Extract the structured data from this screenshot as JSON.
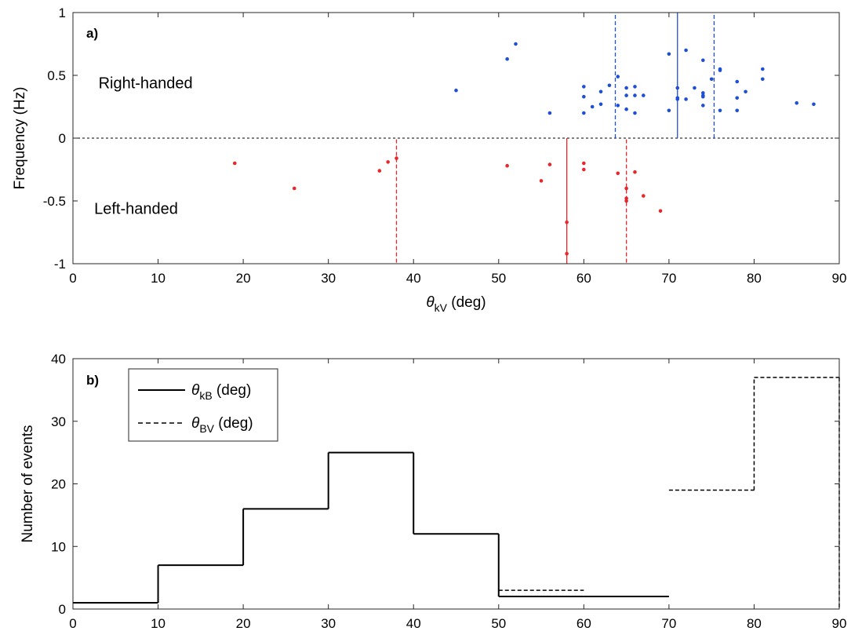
{
  "chart_data": [
    {
      "type": "scatter",
      "panel_label": "a)",
      "xlabel_symbol": "θ",
      "xlabel_sub": "kV",
      "xlabel_rest": " (deg)",
      "ylabel": "Frequency (Hz)",
      "xlim": [
        0,
        90
      ],
      "ylim": [
        -1,
        1
      ],
      "xticks": [
        0,
        10,
        20,
        30,
        40,
        50,
        60,
        70,
        80,
        90
      ],
      "yticks": [
        -1,
        -0.5,
        0,
        0.5,
        1
      ],
      "grid": false,
      "annotations": [
        {
          "text": "Right-handed",
          "x": 3,
          "y": 0.44
        },
        {
          "text": "Left-handed",
          "x": 2.5,
          "y": -0.56
        }
      ],
      "zero_line": {
        "y": 0,
        "style": "dashed",
        "color": "#000000"
      },
      "series": [
        {
          "color": "#1f4fd6",
          "points": [
            [
              45,
              0.38
            ],
            [
              51,
              0.63
            ],
            [
              52,
              0.75
            ],
            [
              56,
              0.2
            ],
            [
              60,
              0.41
            ],
            [
              60,
              0.33
            ],
            [
              60,
              0.2
            ],
            [
              61,
              0.25
            ],
            [
              62,
              0.27
            ],
            [
              62,
              0.37
            ],
            [
              63,
              0.42
            ],
            [
              64,
              0.49
            ],
            [
              64,
              0.26
            ],
            [
              65,
              0.4
            ],
            [
              65,
              0.34
            ],
            [
              65,
              0.23
            ],
            [
              66,
              0.41
            ],
            [
              66,
              0.34
            ],
            [
              66,
              0.2
            ],
            [
              67,
              0.34
            ],
            [
              70,
              0.67
            ],
            [
              70,
              0.22
            ],
            [
              71,
              0.4
            ],
            [
              71,
              0.32
            ],
            [
              71,
              0.31
            ],
            [
              72,
              0.7
            ],
            [
              72,
              0.31
            ],
            [
              73,
              0.4
            ],
            [
              74,
              0.62
            ],
            [
              74,
              0.36
            ],
            [
              74,
              0.34
            ],
            [
              74,
              0.33
            ],
            [
              74,
              0.26
            ],
            [
              75,
              0.47
            ],
            [
              76,
              0.55
            ],
            [
              76,
              0.54
            ],
            [
              76,
              0.22
            ],
            [
              78,
              0.45
            ],
            [
              78,
              0.32
            ],
            [
              78,
              0.22
            ],
            [
              79,
              0.37
            ],
            [
              81,
              0.55
            ],
            [
              81,
              0.47
            ],
            [
              85,
              0.28
            ],
            [
              87,
              0.27
            ]
          ],
          "vlines": [
            {
              "x": 71,
              "y0": 0,
              "y1": 1,
              "style": "solid"
            },
            {
              "x": 63.7,
              "y0": 0,
              "y1": 1,
              "style": "dashed"
            },
            {
              "x": 75.3,
              "y0": 0,
              "y1": 1,
              "style": "dashed"
            }
          ]
        },
        {
          "color": "#e8262b",
          "points": [
            [
              19,
              -0.2
            ],
            [
              26,
              -0.4
            ],
            [
              36,
              -0.26
            ],
            [
              37,
              -0.19
            ],
            [
              38,
              -0.16
            ],
            [
              51,
              -0.22
            ],
            [
              55,
              -0.34
            ],
            [
              56,
              -0.21
            ],
            [
              58,
              -0.67
            ],
            [
              58,
              -0.92
            ],
            [
              60,
              -0.2
            ],
            [
              60,
              -0.25
            ],
            [
              64,
              -0.28
            ],
            [
              65,
              -0.4
            ],
            [
              65,
              -0.48
            ],
            [
              65,
              -0.5
            ],
            [
              66,
              -0.27
            ],
            [
              67,
              -0.46
            ],
            [
              69,
              -0.58
            ]
          ],
          "vlines": [
            {
              "x": 58,
              "y0": 0,
              "y1": -1,
              "style": "solid"
            },
            {
              "x": 38,
              "y0": -0.01,
              "y1": -1,
              "style": "dashed"
            },
            {
              "x": 65,
              "y0": -0.01,
              "y1": -1,
              "style": "dashed"
            }
          ]
        }
      ]
    },
    {
      "type": "histogram-stairs",
      "panel_label": "b)",
      "ylabel": "Number of events",
      "xlim": [
        0,
        90
      ],
      "ylim": [
        0,
        40
      ],
      "xticks": [
        0,
        10,
        20,
        30,
        40,
        50,
        60,
        70,
        80,
        90
      ],
      "yticks": [
        0,
        10,
        20,
        30,
        40
      ],
      "grid": false,
      "legend": {
        "placement": "top-left",
        "entries": [
          {
            "symbol": "θ",
            "sub": "kB",
            "rest": " (deg)",
            "style": "solid"
          },
          {
            "symbol": "θ",
            "sub": "BV",
            "rest": " (deg)",
            "style": "dashed"
          }
        ]
      },
      "series": [
        {
          "style": "solid",
          "bin_edges": [
            0,
            10,
            20,
            30,
            40,
            50,
            60,
            70
          ],
          "values": [
            1,
            7,
            16,
            25,
            12,
            2,
            2
          ]
        },
        {
          "style": "dashed",
          "bin_edges": [
            50,
            60,
            70,
            80,
            90
          ],
          "values": [
            3,
            null,
            19,
            37
          ]
        }
      ]
    }
  ]
}
